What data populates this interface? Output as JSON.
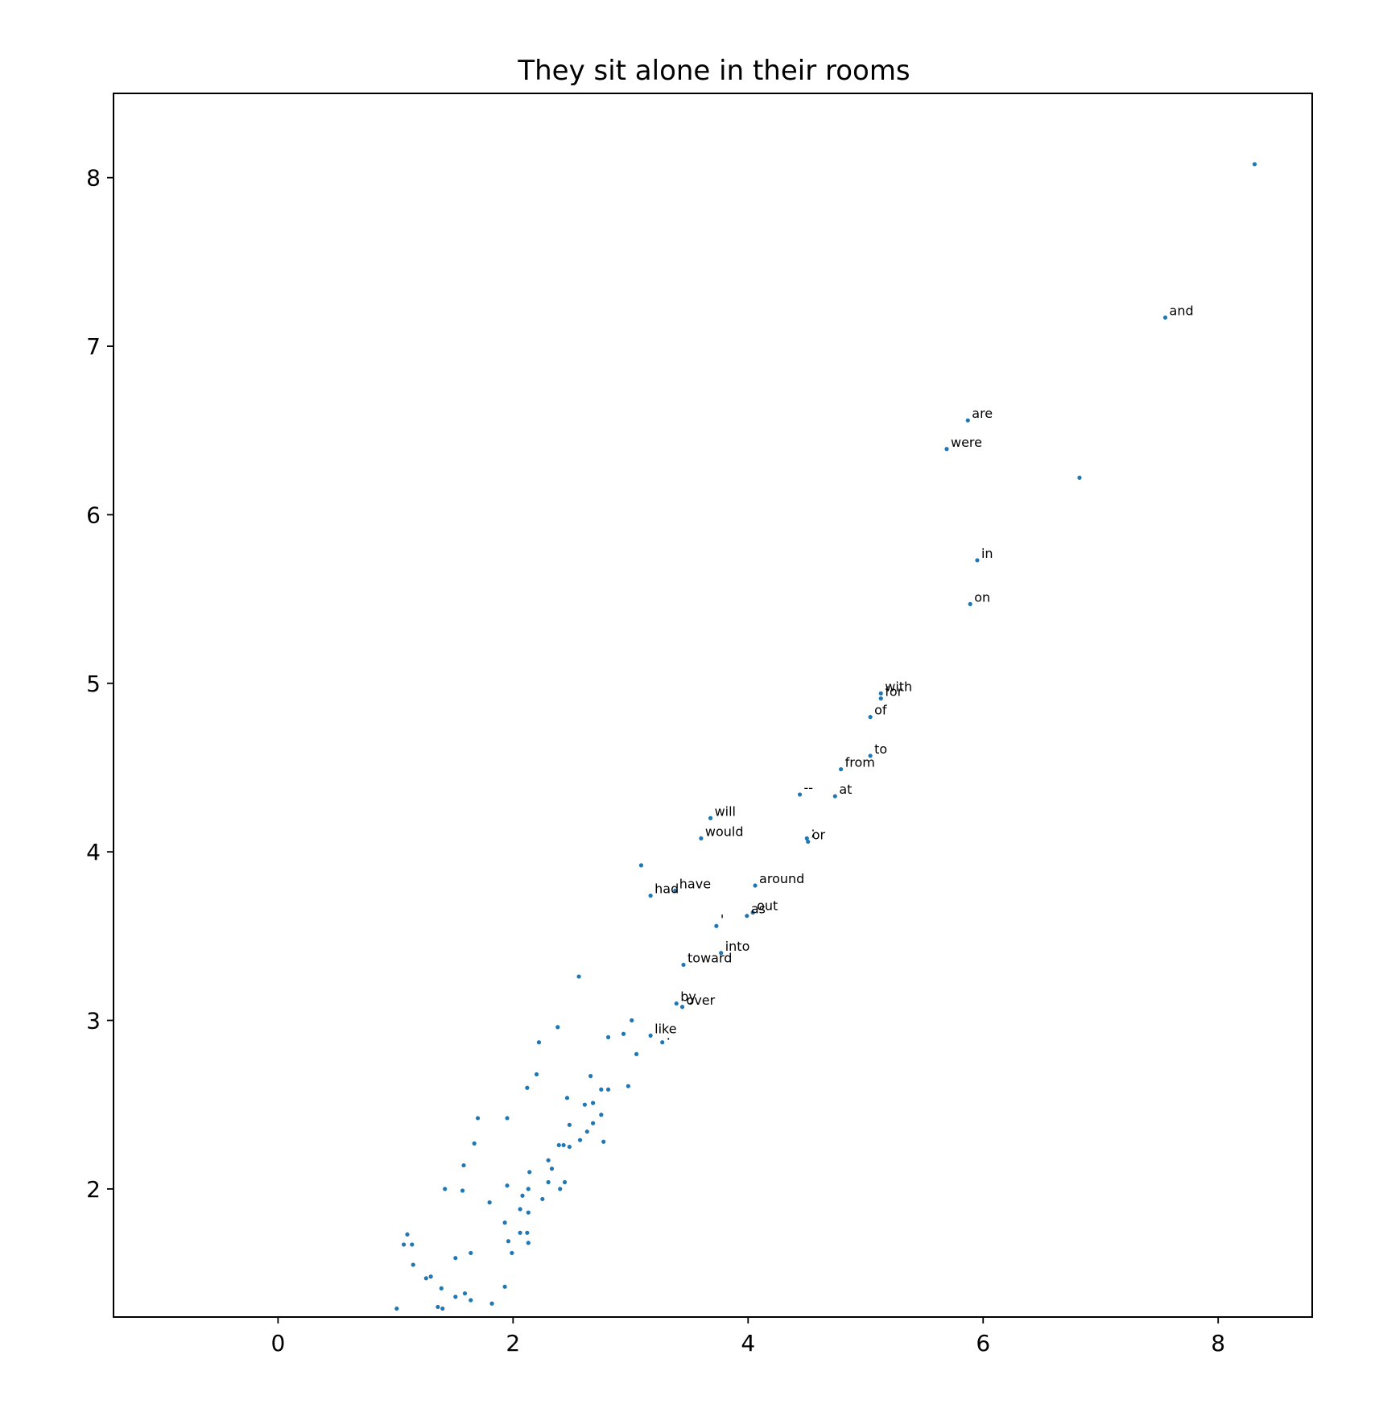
{
  "chart_data": {
    "type": "scatter",
    "title": "They sit alone in their rooms",
    "xlabel": "",
    "ylabel": "",
    "xlim": [
      -1.4,
      8.8
    ],
    "ylim": [
      1.24,
      8.5
    ],
    "xticks": [
      0,
      2,
      4,
      6,
      8
    ],
    "yticks": [
      2,
      3,
      4,
      5,
      6,
      7,
      8
    ],
    "grid": false,
    "point_color": "#1f77b4",
    "labeled_points": [
      {
        "label": "and",
        "x": 7.55,
        "y": 7.17
      },
      {
        "label": "are",
        "x": 5.87,
        "y": 6.56
      },
      {
        "label": "were",
        "x": 5.69,
        "y": 6.39
      },
      {
        "label": "in",
        "x": 5.95,
        "y": 5.73
      },
      {
        "label": "on",
        "x": 5.89,
        "y": 5.47
      },
      {
        "label": "with",
        "x": 5.13,
        "y": 4.94
      },
      {
        "label": "for",
        "x": 5.13,
        "y": 4.91
      },
      {
        "label": "of",
        "x": 5.04,
        "y": 4.8
      },
      {
        "label": "to",
        "x": 5.04,
        "y": 4.57
      },
      {
        "label": "from",
        "x": 4.79,
        "y": 4.49
      },
      {
        "label": "--",
        "x": 4.44,
        "y": 4.34
      },
      {
        "label": "at",
        "x": 4.74,
        "y": 4.33
      },
      {
        "label": "will",
        "x": 3.68,
        "y": 4.2
      },
      {
        "label": "would",
        "x": 3.6,
        "y": 4.08
      },
      {
        "label": ";",
        "x": 4.5,
        "y": 4.08
      },
      {
        "label": "or",
        "x": 4.51,
        "y": 4.06
      },
      {
        "label": "around",
        "x": 4.06,
        "y": 3.8
      },
      {
        "label": "have",
        "x": 3.38,
        "y": 3.77
      },
      {
        "label": "had",
        "x": 3.17,
        "y": 3.74
      },
      {
        "label": "out",
        "x": 4.04,
        "y": 3.64
      },
      {
        "label": "as",
        "x": 3.99,
        "y": 3.62
      },
      {
        "label": "'",
        "x": 3.73,
        "y": 3.56
      },
      {
        "label": "into",
        "x": 3.77,
        "y": 3.4
      },
      {
        "label": "toward",
        "x": 3.45,
        "y": 3.33
      },
      {
        "label": "by",
        "x": 3.39,
        "y": 3.1
      },
      {
        "label": "over",
        "x": 3.44,
        "y": 3.08
      },
      {
        "label": "like",
        "x": 3.17,
        "y": 2.91
      },
      {
        "label": ".",
        "x": 3.27,
        "y": 2.87
      }
    ],
    "unlabeled_points": [
      {
        "x": 8.31,
        "y": 8.08
      },
      {
        "x": 6.82,
        "y": 6.22
      },
      {
        "x": 3.09,
        "y": 3.92
      },
      {
        "x": 2.56,
        "y": 3.26
      },
      {
        "x": 3.01,
        "y": 3.0
      },
      {
        "x": 2.38,
        "y": 2.96
      },
      {
        "x": 2.94,
        "y": 2.92
      },
      {
        "x": 2.81,
        "y": 2.9
      },
      {
        "x": 2.22,
        "y": 2.87
      },
      {
        "x": 3.05,
        "y": 2.8
      },
      {
        "x": 2.2,
        "y": 2.68
      },
      {
        "x": 2.66,
        "y": 2.67
      },
      {
        "x": 2.98,
        "y": 2.61
      },
      {
        "x": 2.12,
        "y": 2.6
      },
      {
        "x": 2.75,
        "y": 2.59
      },
      {
        "x": 2.81,
        "y": 2.59
      },
      {
        "x": 2.46,
        "y": 2.54
      },
      {
        "x": 2.68,
        "y": 2.51
      },
      {
        "x": 2.61,
        "y": 2.5
      },
      {
        "x": 2.75,
        "y": 2.44
      },
      {
        "x": 1.7,
        "y": 2.42
      },
      {
        "x": 1.95,
        "y": 2.42
      },
      {
        "x": 2.68,
        "y": 2.39
      },
      {
        "x": 2.48,
        "y": 2.38
      },
      {
        "x": 2.63,
        "y": 2.34
      },
      {
        "x": 2.57,
        "y": 2.29
      },
      {
        "x": 2.77,
        "y": 2.28
      },
      {
        "x": 1.67,
        "y": 2.27
      },
      {
        "x": 2.39,
        "y": 2.26
      },
      {
        "x": 2.43,
        "y": 2.26
      },
      {
        "x": 2.48,
        "y": 2.25
      },
      {
        "x": 2.3,
        "y": 2.17
      },
      {
        "x": 1.58,
        "y": 2.14
      },
      {
        "x": 2.33,
        "y": 2.12
      },
      {
        "x": 2.14,
        "y": 2.1
      },
      {
        "x": 2.3,
        "y": 2.04
      },
      {
        "x": 2.44,
        "y": 2.04
      },
      {
        "x": 1.95,
        "y": 2.02
      },
      {
        "x": 1.42,
        "y": 2.0
      },
      {
        "x": 2.13,
        "y": 2.0
      },
      {
        "x": 2.4,
        "y": 2.0
      },
      {
        "x": 1.57,
        "y": 1.99
      },
      {
        "x": 2.08,
        "y": 1.96
      },
      {
        "x": 2.25,
        "y": 1.94
      },
      {
        "x": 1.8,
        "y": 1.92
      },
      {
        "x": 2.06,
        "y": 1.88
      },
      {
        "x": 2.13,
        "y": 1.86
      },
      {
        "x": 1.93,
        "y": 1.8
      },
      {
        "x": 2.06,
        "y": 1.74
      },
      {
        "x": 2.12,
        "y": 1.74
      },
      {
        "x": 1.1,
        "y": 1.73
      },
      {
        "x": 1.96,
        "y": 1.69
      },
      {
        "x": 2.13,
        "y": 1.68
      },
      {
        "x": 1.07,
        "y": 1.67
      },
      {
        "x": 1.14,
        "y": 1.67
      },
      {
        "x": 1.64,
        "y": 1.62
      },
      {
        "x": 1.99,
        "y": 1.62
      },
      {
        "x": 1.51,
        "y": 1.59
      },
      {
        "x": 1.15,
        "y": 1.55
      },
      {
        "x": 1.3,
        "y": 1.48
      },
      {
        "x": 1.26,
        "y": 1.47
      },
      {
        "x": 1.93,
        "y": 1.42
      },
      {
        "x": 1.39,
        "y": 1.41
      },
      {
        "x": 1.59,
        "y": 1.38
      },
      {
        "x": 1.51,
        "y": 1.36
      },
      {
        "x": 1.64,
        "y": 1.34
      },
      {
        "x": 1.82,
        "y": 1.32
      },
      {
        "x": 1.36,
        "y": 1.3
      },
      {
        "x": 1.01,
        "y": 1.29
      },
      {
        "x": 1.4,
        "y": 1.29
      }
    ]
  }
}
